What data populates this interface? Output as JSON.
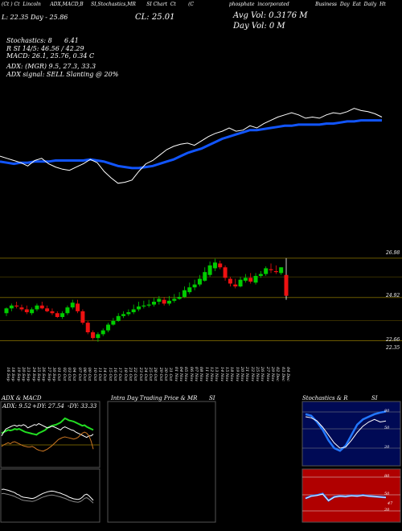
{
  "header": {
    "line1": [
      "(Ct ) Ct",
      "Lincoln",
      "ADX,MACD,B",
      "SI,Stochastics,MR",
      "SI Chart",
      "Ct",
      "(C",
      "phosphate",
      "incorporated",
      "Business",
      "Day",
      "Eat",
      "Daily",
      "Ht"
    ],
    "low_line": "L: 22.35 Day - 25.86",
    "close_line": "CL: 25.01",
    "avg_vol": "Avg Vol: 0.3176   M",
    "day_vol": "Day Vol: 0   M",
    "stochastics": "Stochastics: 8",
    "stoch_val": "6.41",
    "rsi_line": "R           SI 14/5: 46.56  / 42.29",
    "macd_line": "MACD: 26.1, 25.76,  0.34  C",
    "adx_line": "ADX:                   (MGR) 9.5,  27.3,  33.3",
    "adx_signal": "ADX  signal: SELL  Slanting @ 20%"
  },
  "price_axis": [
    "26.98",
    "24.92",
    "22.66",
    "22.35"
  ],
  "date_labels": [
    "16 Sep",
    "18 Sep",
    "19 Sep",
    "20 Sep",
    "23 Sep",
    "24 Sep",
    "25 Sep",
    "26 Sep",
    "27 Sep",
    "30 Sep",
    "01 Oct",
    "02 Oct",
    "03 Oct",
    "04 Oct",
    "07 Oct",
    "08 Oct",
    "09 Oct",
    "10 Oct",
    "11 Oct",
    "14 Oct",
    "15 Oct",
    "16 Oct",
    "17 Oct",
    "18 Oct",
    "21 Oct",
    "22 Oct",
    "23 Oct",
    "24 Oct",
    "25 Oct",
    "28 Oct",
    "29 Oct",
    "30 Oct",
    "31 Oct",
    "01 Nov",
    "04 Nov",
    "05 Nov",
    "06 Nov",
    "07 Nov",
    "08 Nov",
    "11 Nov",
    "12 Nov",
    "13 Nov",
    "14 Nov",
    "15 Nov",
    "18 Nov",
    "19 Nov",
    "20 Nov",
    "21 Nov",
    "22 Nov",
    "25 Nov",
    "26 Nov",
    "27 Nov",
    "29 Nov",
    "02 Dec",
    "03 Dec",
    "04 Dec"
  ],
  "panels": {
    "adx_title": "ADX  & MACD",
    "adx_readout": {
      "adx": "ADX: 9.52",
      "plus": "+DY: 27.54",
      "minus": "-DY: 33.33"
    },
    "intra_title": "Intra  Day Trading Price  & MR",
    "intra_title2": "SI",
    "stoch_title": "Stochastics & R",
    "stoch_title2": "SI",
    "stoch_axis": [
      "80",
      "50",
      "20"
    ],
    "rsi_axis": [
      "80",
      "50",
      "20"
    ],
    "rsi_value": "47"
  },
  "colors": {
    "bg": "#000000",
    "up": "#00cc00",
    "down": "#ee1111",
    "ma": "#1155ff",
    "grid": "#6b5a00",
    "rsi_bg": "#b00000",
    "stoch_bg": "#000a55"
  },
  "chart_data": [
    {
      "type": "line",
      "x": [
        "16 Sep",
        "18 Sep",
        "19 Sep",
        "20 Sep",
        "23 Sep",
        "24 Sep",
        "25 Sep",
        "26 Sep",
        "27 Sep",
        "30 Sep",
        "01 Oct",
        "02 Oct",
        "03 Oct",
        "04 Oct",
        "07 Oct",
        "08 Oct",
        "09 Oct",
        "10 Oct",
        "11 Oct",
        "14 Oct",
        "15 Oct",
        "16 Oct",
        "17 Oct",
        "18 Oct",
        "21 Oct",
        "22 Oct",
        "23 Oct",
        "24 Oct",
        "25 Oct",
        "28 Oct",
        "29 Oct",
        "30 Oct",
        "31 Oct",
        "01 Nov",
        "04 Nov",
        "05 Nov",
        "06 Nov",
        "07 Nov",
        "08 Nov",
        "11 Nov",
        "12 Nov",
        "13 Nov",
        "14 Nov",
        "15 Nov",
        "18 Nov",
        "19 Nov",
        "20 Nov",
        "21 Nov",
        "22 Nov",
        "25 Nov",
        "26 Nov",
        "27 Nov",
        "29 Nov",
        "02 Dec",
        "03 Dec",
        "04 Dec"
      ],
      "series": [
        {
          "values": [
            0.34,
            0.32,
            0.3,
            0.28,
            0.25,
            0.3,
            0.32,
            0.27,
            0.24,
            0.22,
            0.21,
            0.24,
            0.27,
            0.31,
            0.28,
            0.2,
            0.14,
            0.09,
            0.1,
            0.12,
            0.2,
            0.27,
            0.3,
            0.35,
            0.4,
            0.43,
            0.45,
            0.46,
            0.44,
            0.48,
            0.52,
            0.55,
            0.57,
            0.6,
            0.57,
            0.58,
            0.62,
            0.6,
            0.64,
            0.67,
            0.7,
            0.72,
            0.74,
            0.72,
            0.69,
            0.7,
            0.69,
            0.72,
            0.74,
            0.73,
            0.75,
            0.78,
            0.76,
            0.75,
            0.73,
            0.7
          ]
        },
        {
          "values": [
            0.29,
            0.28,
            0.27,
            0.28,
            0.28,
            0.29,
            0.29,
            0.29,
            0.3,
            0.3,
            0.3,
            0.3,
            0.3,
            0.31,
            0.3,
            0.29,
            0.27,
            0.25,
            0.24,
            0.23,
            0.23,
            0.24,
            0.25,
            0.27,
            0.29,
            0.31,
            0.34,
            0.37,
            0.39,
            0.41,
            0.44,
            0.47,
            0.5,
            0.52,
            0.54,
            0.56,
            0.58,
            0.58,
            0.59,
            0.6,
            0.61,
            0.62,
            0.62,
            0.63,
            0.63,
            0.63,
            0.63,
            0.64,
            0.64,
            0.65,
            0.66,
            0.66,
            0.67,
            0.67,
            0.67,
            0.67
          ]
        }
      ]
    },
    {
      "type": "candlestick",
      "x": [
        "16 Sep",
        "18 Sep",
        "19 Sep",
        "20 Sep",
        "23 Sep",
        "24 Sep",
        "25 Sep",
        "26 Sep",
        "27 Sep",
        "30 Sep",
        "01 Oct",
        "02 Oct",
        "03 Oct",
        "04 Oct",
        "07 Oct",
        "08 Oct",
        "09 Oct",
        "10 Oct",
        "11 Oct",
        "14 Oct",
        "15 Oct",
        "16 Oct",
        "17 Oct",
        "18 Oct",
        "21 Oct",
        "22 Oct",
        "23 Oct",
        "24 Oct",
        "25 Oct",
        "28 Oct",
        "29 Oct",
        "30 Oct",
        "31 Oct",
        "01 Nov",
        "04 Nov",
        "05 Nov",
        "06 Nov",
        "07 Nov",
        "08 Nov",
        "11 Nov",
        "12 Nov",
        "13 Nov",
        "14 Nov",
        "15 Nov",
        "18 Nov",
        "19 Nov",
        "20 Nov",
        "21 Nov",
        "22 Nov",
        "25 Nov",
        "26 Nov",
        "27 Nov",
        "29 Nov",
        "02 Dec",
        "03 Dec",
        "04 Dec"
      ],
      "open": [
        24.1,
        24.35,
        24.5,
        24.4,
        24.3,
        24.1,
        24.3,
        24.5,
        24.35,
        24.2,
        24.1,
        23.9,
        24.1,
        24.4,
        24.6,
        24.2,
        23.6,
        23.1,
        22.8,
        23.0,
        23.2,
        23.5,
        23.7,
        23.95,
        24.05,
        24.15,
        24.3,
        24.45,
        24.5,
        24.55,
        24.7,
        24.8,
        24.6,
        24.75,
        24.85,
        24.95,
        25.2,
        25.45,
        25.6,
        25.8,
        26.1,
        26.45,
        26.7,
        26.5,
        25.9,
        25.6,
        25.5,
        25.8,
        25.95,
        25.7,
        26.05,
        26.15,
        26.4,
        26.3,
        26.2,
        26.1
      ],
      "high": [
        24.4,
        24.6,
        24.7,
        24.55,
        24.5,
        24.4,
        24.6,
        24.7,
        24.5,
        24.35,
        24.2,
        24.2,
        24.5,
        24.8,
        24.8,
        24.3,
        23.7,
        23.2,
        23.1,
        23.3,
        23.6,
        23.85,
        24.1,
        24.2,
        24.3,
        24.55,
        24.7,
        24.75,
        24.8,
        24.9,
        25.0,
        24.95,
        25.0,
        25.1,
        25.2,
        25.5,
        25.7,
        25.85,
        26.1,
        26.5,
        26.8,
        26.95,
        26.85,
        26.6,
        26.0,
        25.9,
        26.0,
        26.15,
        26.2,
        26.2,
        26.3,
        26.55,
        26.7,
        26.6,
        26.5,
        26.98
      ],
      "low": [
        23.95,
        24.2,
        24.35,
        24.2,
        24.05,
        24.0,
        24.2,
        24.3,
        24.15,
        24.0,
        23.85,
        23.8,
        24.0,
        24.3,
        24.1,
        23.5,
        23.0,
        22.7,
        22.6,
        22.9,
        23.1,
        23.45,
        23.65,
        23.85,
        23.95,
        24.05,
        24.2,
        24.35,
        24.4,
        24.45,
        24.55,
        24.5,
        24.5,
        24.65,
        24.8,
        24.9,
        25.1,
        25.3,
        25.5,
        25.75,
        26.0,
        26.3,
        26.4,
        25.8,
        25.5,
        25.4,
        25.45,
        25.7,
        25.65,
        25.6,
        25.95,
        26.05,
        26.2,
        26.15,
        26.1,
        24.8
      ],
      "close": [
        24.35,
        24.5,
        24.45,
        24.3,
        24.15,
        24.3,
        24.5,
        24.35,
        24.2,
        24.1,
        23.9,
        24.1,
        24.4,
        24.65,
        24.2,
        23.6,
        23.1,
        22.8,
        23.0,
        23.2,
        23.5,
        23.7,
        23.95,
        24.05,
        24.15,
        24.3,
        24.45,
        24.5,
        24.55,
        24.7,
        24.85,
        24.6,
        24.75,
        24.85,
        24.95,
        25.3,
        25.45,
        25.6,
        25.9,
        26.25,
        26.6,
        26.75,
        26.5,
        25.95,
        25.65,
        25.5,
        25.85,
        25.95,
        25.75,
        26.05,
        26.15,
        26.45,
        26.35,
        26.25,
        26.5,
        25.01
      ]
    },
    {
      "type": "line",
      "title": "ADX  & MACD",
      "series": [
        {
          "values": [
            0.55,
            0.62,
            0.68,
            0.7,
            0.72,
            0.74,
            0.75,
            0.73,
            0.75,
            0.74,
            0.76,
            0.74,
            0.7,
            0.72,
            0.74,
            0.76,
            0.75,
            0.78,
            0.76,
            0.74,
            0.72,
            0.7,
            0.71,
            0.73,
            0.72,
            0.7,
            0.68,
            0.66,
            0.7,
            0.72,
            0.7,
            0.68,
            0.66,
            0.65,
            0.62,
            0.6,
            0.58,
            0.56,
            0.54,
            0.52,
            0.55,
            0.55,
            0.58
          ]
        },
        {
          "values": [
            0.6,
            0.62,
            0.64,
            0.66,
            0.65,
            0.66,
            0.68,
            0.67,
            0.68,
            0.66,
            0.64,
            0.62,
            0.61,
            0.6,
            0.59,
            0.58,
            0.57,
            0.6,
            0.62,
            0.64,
            0.66,
            0.7,
            0.72,
            0.74,
            0.75,
            0.76,
            0.78,
            0.8,
            0.84,
            0.88,
            0.86,
            0.84,
            0.83,
            0.82,
            0.8,
            0.78,
            0.76,
            0.74,
            0.75,
            0.72,
            0.7,
            0.68,
            0.66
          ]
        },
        {
          "values": [
            0.35,
            0.38,
            0.4,
            0.42,
            0.4,
            0.43,
            0.44,
            0.42,
            0.4,
            0.38,
            0.36,
            0.35,
            0.34,
            0.34,
            0.35,
            0.33,
            0.3,
            0.28,
            0.27,
            0.26,
            0.28,
            0.3,
            0.33,
            0.36,
            0.4,
            0.44,
            0.48,
            0.5,
            0.52,
            0.53,
            0.52,
            0.51,
            0.5,
            0.49,
            0.5,
            0.52,
            0.56,
            0.6,
            0.62,
            0.6,
            0.55,
            0.45,
            0.3
          ]
        },
        {
          "values": [
            0.9,
            0.92,
            0.88,
            0.85,
            0.8,
            0.75,
            0.7,
            0.6,
            0.55,
            0.45,
            0.4,
            0.38,
            0.36,
            0.34,
            0.32,
            0.35,
            0.42,
            0.5,
            0.58,
            0.65,
            0.7,
            0.75,
            0.78,
            0.8,
            0.78,
            0.74,
            0.7,
            0.66,
            0.6,
            0.55,
            0.48,
            0.4,
            0.35,
            0.3,
            0.28,
            0.26,
            0.3,
            0.4,
            0.55,
            0.6,
            0.5,
            0.35,
            0.2
          ]
        }
      ]
    },
    {
      "type": "line",
      "title": "Stochastics & R SI",
      "series": [
        {
          "values": [
            0.85,
            0.82,
            0.7,
            0.55,
            0.35,
            0.2,
            0.15,
            0.25,
            0.45,
            0.65,
            0.75,
            0.8,
            0.85,
            0.88,
            0.9
          ]
        },
        {
          "values": [
            0.8,
            0.78,
            0.72,
            0.6,
            0.45,
            0.3,
            0.2,
            0.22,
            0.35,
            0.5,
            0.62,
            0.7,
            0.75,
            0.7,
            0.72
          ]
        }
      ]
    }
  ]
}
